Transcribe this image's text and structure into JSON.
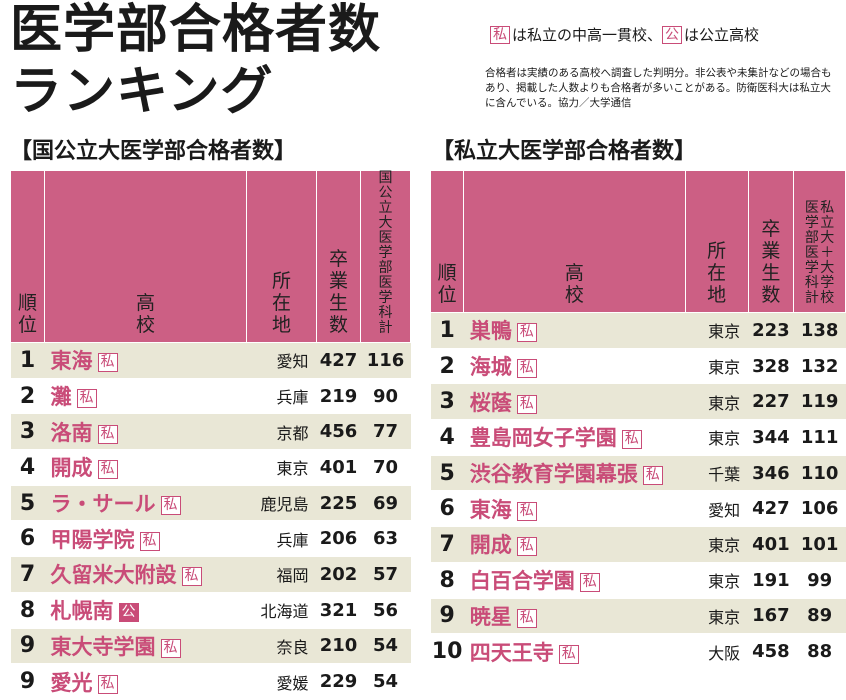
{
  "header": {
    "title_line1": "医学部合格者数",
    "title_line2": "ランキング",
    "legend": {
      "private_mark": "私",
      "private_desc": "は私立の中高一貫校、",
      "public_mark": "公",
      "public_desc": "は公立高校"
    },
    "note": "合格者は実績のある高校へ調査した判明分。非公表や未集計などの場合もあり、掲載した人数よりも合格者が多いことがある。防衛医科大は私立大に含んでいる。協力／大学通信"
  },
  "national": {
    "section_title": "【国公立大医学部合格者数】",
    "columns": [
      "順位",
      "高校",
      "所在地",
      "卒業生数",
      "国公立大医学部医学科計"
    ],
    "rows": [
      {
        "rank": "1",
        "school": "東海",
        "badge": "私",
        "pref": "愛知",
        "grads": "427",
        "total": "116"
      },
      {
        "rank": "2",
        "school": "灘",
        "badge": "私",
        "pref": "兵庫",
        "grads": "219",
        "total": "90"
      },
      {
        "rank": "3",
        "school": "洛南",
        "badge": "私",
        "pref": "京都",
        "grads": "456",
        "total": "77"
      },
      {
        "rank": "4",
        "school": "開成",
        "badge": "私",
        "pref": "東京",
        "grads": "401",
        "total": "70"
      },
      {
        "rank": "5",
        "school": "ラ・サール",
        "badge": "私",
        "pref": "鹿児島",
        "grads": "225",
        "total": "69"
      },
      {
        "rank": "6",
        "school": "甲陽学院",
        "badge": "私",
        "pref": "兵庫",
        "grads": "206",
        "total": "63"
      },
      {
        "rank": "7",
        "school": "久留米大附設",
        "badge": "私",
        "pref": "福岡",
        "grads": "202",
        "total": "57"
      },
      {
        "rank": "8",
        "school": "札幌南",
        "badge": "公",
        "pref": "北海道",
        "grads": "321",
        "total": "56"
      },
      {
        "rank": "9",
        "school": "東大寺学園",
        "badge": "私",
        "pref": "奈良",
        "grads": "210",
        "total": "54"
      },
      {
        "rank": "9",
        "school": "愛光",
        "badge": "私",
        "pref": "愛媛",
        "grads": "229",
        "total": "54"
      }
    ]
  },
  "private": {
    "section_title": "【私立大医学部合格者数】",
    "columns": [
      "順位",
      "高校",
      "所在地",
      "卒業生数",
      "医学部医学科計",
      "私立大＋大学校"
    ],
    "rows": [
      {
        "rank": "1",
        "school": "巣鴨",
        "badge": "私",
        "pref": "東京",
        "grads": "223",
        "total": "138"
      },
      {
        "rank": "2",
        "school": "海城",
        "badge": "私",
        "pref": "東京",
        "grads": "328",
        "total": "132"
      },
      {
        "rank": "3",
        "school": "桜蔭",
        "badge": "私",
        "pref": "東京",
        "grads": "227",
        "total": "119"
      },
      {
        "rank": "4",
        "school": "豊島岡女子学園",
        "badge": "私",
        "pref": "東京",
        "grads": "344",
        "total": "111"
      },
      {
        "rank": "5",
        "school": "渋谷教育学園幕張",
        "badge": "私",
        "pref": "千葉",
        "grads": "346",
        "total": "110"
      },
      {
        "rank": "6",
        "school": "東海",
        "badge": "私",
        "pref": "愛知",
        "grads": "427",
        "total": "106"
      },
      {
        "rank": "7",
        "school": "開成",
        "badge": "私",
        "pref": "東京",
        "grads": "401",
        "total": "101"
      },
      {
        "rank": "8",
        "school": "白百合学園",
        "badge": "私",
        "pref": "東京",
        "grads": "191",
        "total": "99"
      },
      {
        "rank": "9",
        "school": "暁星",
        "badge": "私",
        "pref": "東京",
        "grads": "167",
        "total": "89"
      },
      {
        "rank": "10",
        "school": "四天王寺",
        "badge": "私",
        "pref": "大阪",
        "grads": "458",
        "total": "88"
      }
    ]
  },
  "colors": {
    "header_bg": "#cc5f84",
    "accent": "#c94c78",
    "stripe": "#e9e7d6"
  }
}
